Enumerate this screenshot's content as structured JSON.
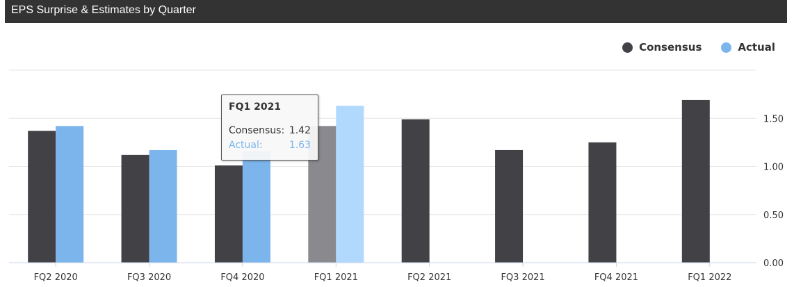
{
  "header": {
    "title": "EPS Surprise & Estimates by Quarter"
  },
  "colors": {
    "header_bg": "#333333",
    "consensus": "#424146",
    "actual": "#7cb5ec",
    "consensus_hover": "#8a898e",
    "actual_hover": "#b0d9fd",
    "grid": "#e6e6e6",
    "axis": "#ccd6eb"
  },
  "legend": {
    "items": [
      {
        "label": "Consensus",
        "color": "#424146"
      },
      {
        "label": "Actual",
        "color": "#7cb5ec"
      }
    ]
  },
  "tooltip": {
    "title": "FQ1 2021",
    "rows": [
      {
        "label": "Consensus:",
        "value": "1.42",
        "color": "#333333"
      },
      {
        "label": "Actual:",
        "value": "1.63",
        "color": "#7cb5ec"
      }
    ]
  },
  "chart_data": {
    "type": "bar",
    "title": "EPS Surprise & Estimates by Quarter",
    "categories": [
      "FQ2 2020",
      "FQ3 2020",
      "FQ4 2020",
      "FQ1 2021",
      "FQ2 2021",
      "FQ3 2021",
      "FQ4 2021",
      "FQ1 2022"
    ],
    "series": [
      {
        "name": "Consensus",
        "values": [
          1.37,
          1.12,
          1.01,
          1.42,
          1.49,
          1.17,
          1.25,
          1.69
        ]
      },
      {
        "name": "Actual",
        "values": [
          1.42,
          1.17,
          1.16,
          1.63,
          null,
          null,
          null,
          null
        ]
      }
    ],
    "ylim": [
      0,
      2.0
    ],
    "yticks": [
      "0.00",
      "0.50",
      "1.00",
      "1.50"
    ],
    "ytick_values": [
      0,
      0.5,
      1.0,
      1.5
    ],
    "y_axis_side": "right",
    "grid": true,
    "legend_position": "top-right",
    "highlighted_category": "FQ1 2021"
  }
}
